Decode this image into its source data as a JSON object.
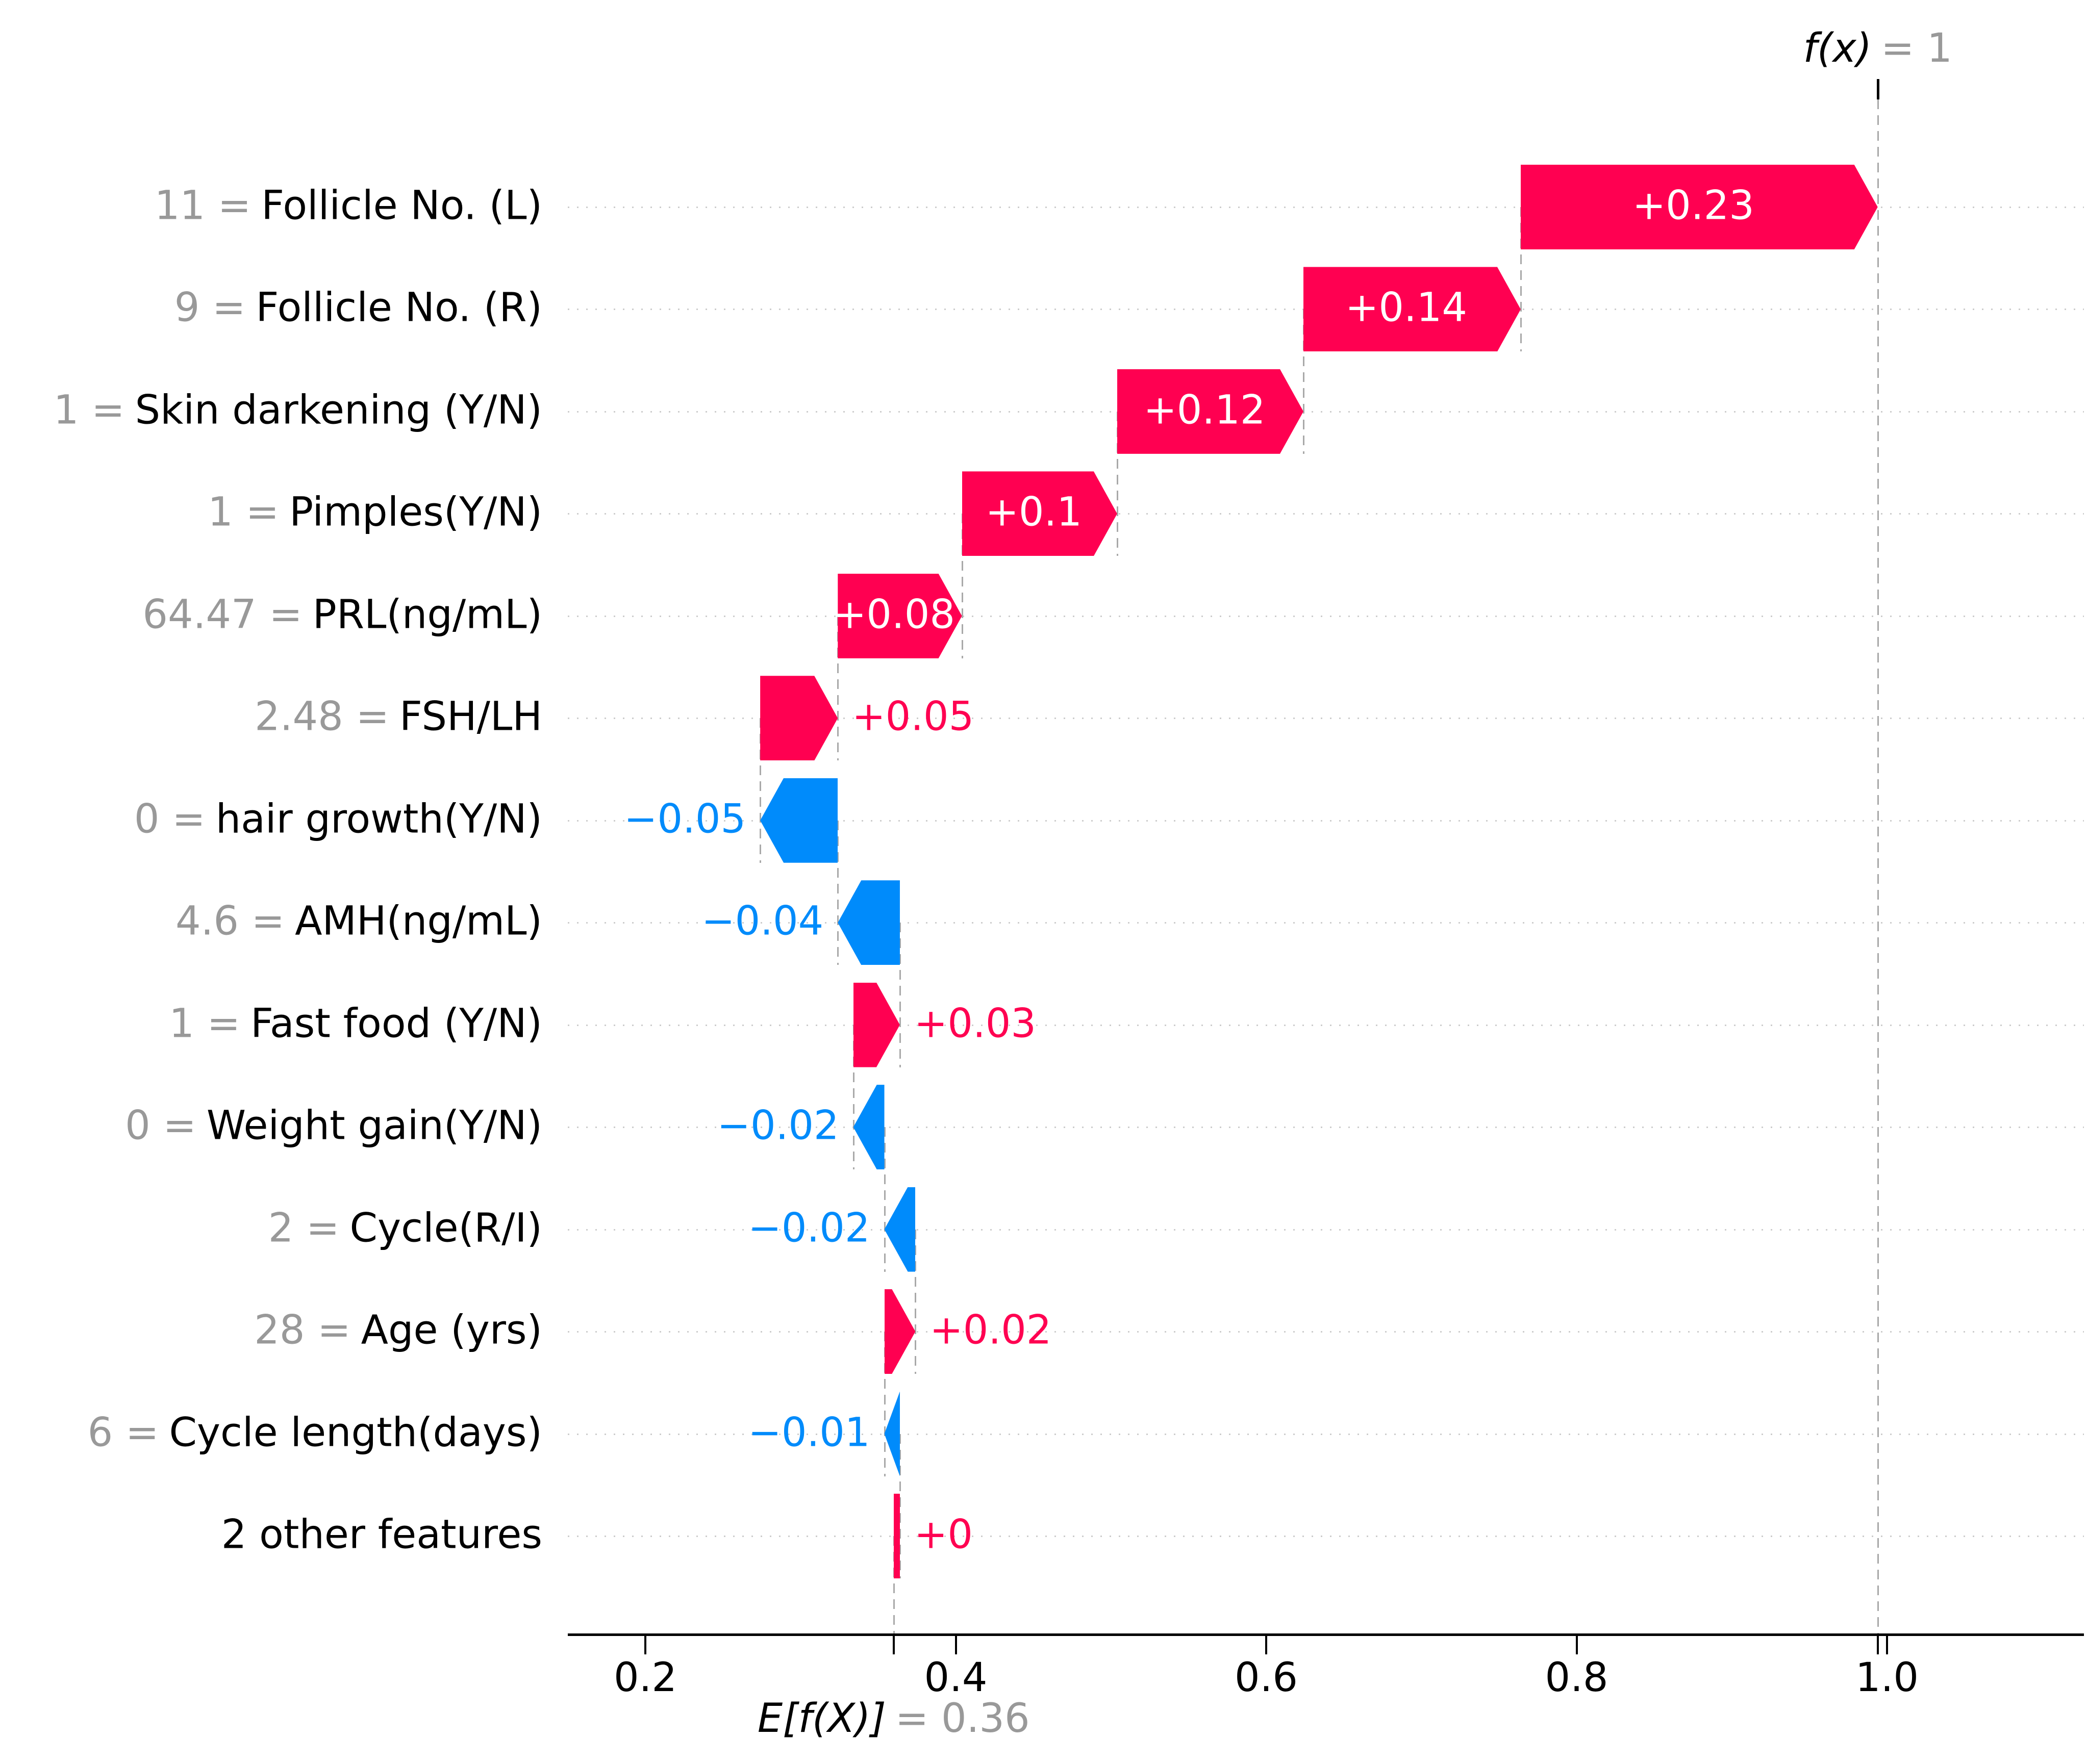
{
  "chart_data": {
    "type": "bar",
    "variant": "shap-waterfall",
    "title": "",
    "fx_annotation": {
      "expression": "f(x)",
      "equals": "= 1",
      "value": 0.994
    },
    "ef_annotation": {
      "expression": "E[f(X)]",
      "equals": "= 0.36",
      "value": 0.36
    },
    "x_axis": {
      "tick_labels": [
        "0.2",
        "0.4",
        "0.6",
        "0.8",
        "1.0"
      ],
      "tick_values": [
        0.2,
        0.4,
        0.6,
        0.8,
        1.0
      ],
      "range_shown": [
        0.146,
        1.125
      ],
      "grid": "dotted horizontal line per feature row"
    },
    "legend": null,
    "colors": {
      "positive": "#ff0051",
      "negative": "#008bfb",
      "muted": "#999999",
      "inside_label": "#ffffff",
      "connector": "#a9a9a9",
      "gridline": "#cdcdcd",
      "axis": "#000000"
    },
    "rows": [
      {
        "prefix": "11 =",
        "feature": "Follicle No. (L)",
        "phi": 0.23,
        "label": "+0.23",
        "base": 0.764,
        "tip": 0.994
      },
      {
        "prefix": "9 =",
        "feature": "Follicle No. (R)",
        "phi": 0.14,
        "label": "+0.14",
        "base": 0.624,
        "tip": 0.764
      },
      {
        "prefix": "1 =",
        "feature": "Skin darkening (Y/N)",
        "phi": 0.12,
        "label": "+0.12",
        "base": 0.504,
        "tip": 0.624
      },
      {
        "prefix": "1 =",
        "feature": "Pimples(Y/N)",
        "phi": 0.1,
        "label": "+0.1",
        "base": 0.404,
        "tip": 0.504
      },
      {
        "prefix": "64.47 =",
        "feature": "PRL(ng/mL)",
        "phi": 0.08,
        "label": "+0.08",
        "base": 0.324,
        "tip": 0.404
      },
      {
        "prefix": "2.48 =",
        "feature": "FSH/LH",
        "phi": 0.05,
        "label": "+0.05",
        "base": 0.274,
        "tip": 0.324
      },
      {
        "prefix": "0 =",
        "feature": "hair growth(Y/N)",
        "phi": -0.05,
        "label": "−0.05",
        "base": 0.324,
        "tip": 0.274
      },
      {
        "prefix": "4.6 =",
        "feature": "AMH(ng/mL)",
        "phi": -0.04,
        "label": "−0.04",
        "base": 0.364,
        "tip": 0.324
      },
      {
        "prefix": "1 =",
        "feature": "Fast food (Y/N)",
        "phi": 0.03,
        "label": "+0.03",
        "base": 0.334,
        "tip": 0.364
      },
      {
        "prefix": "0 =",
        "feature": "Weight gain(Y/N)",
        "phi": -0.02,
        "label": "−0.02",
        "base": 0.354,
        "tip": 0.334
      },
      {
        "prefix": "2 =",
        "feature": "Cycle(R/I)",
        "phi": -0.02,
        "label": "−0.02",
        "base": 0.374,
        "tip": 0.354
      },
      {
        "prefix": "28 =",
        "feature": "Age (yrs)",
        "phi": 0.02,
        "label": "+0.02",
        "base": 0.354,
        "tip": 0.374
      },
      {
        "prefix": "6 =",
        "feature": "Cycle length(days)",
        "phi": -0.01,
        "label": "−0.01",
        "base": 0.364,
        "tip": 0.354
      },
      {
        "prefix": "",
        "feature": "2 other features",
        "phi": 0.004,
        "label": "+0",
        "base": 0.36,
        "tip": 0.364
      }
    ]
  }
}
